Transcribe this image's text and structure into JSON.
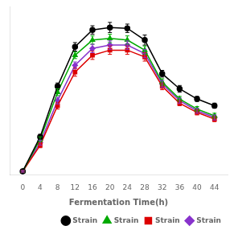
{
  "chart_data": {
    "type": "line",
    "xlabel": "Fermentation Time(h)",
    "x": [
      0,
      4,
      8,
      12,
      16,
      20,
      24,
      28,
      32,
      36,
      40,
      44
    ],
    "series": [
      {
        "name": "Strain",
        "color": "#000000",
        "marker": "circle",
        "values": [
          0.04,
          0.45,
          1.05,
          1.52,
          1.72,
          1.75,
          1.74,
          1.6,
          1.2,
          1.02,
          0.9,
          0.82
        ],
        "yerr": [
          0.01,
          0.03,
          0.04,
          0.05,
          0.05,
          0.06,
          0.05,
          0.06,
          0.04,
          0.04,
          0.03,
          0.03
        ]
      },
      {
        "name": "Strain",
        "color": "#00aa00",
        "marker": "triangle",
        "values": [
          0.04,
          0.42,
          0.98,
          1.42,
          1.6,
          1.62,
          1.6,
          1.48,
          1.1,
          0.9,
          0.78,
          0.7
        ],
        "yerr": [
          0.01,
          0.03,
          0.04,
          0.04,
          0.05,
          0.05,
          0.05,
          0.05,
          0.04,
          0.03,
          0.03,
          0.03
        ]
      },
      {
        "name": "Strain",
        "color": "#dd0000",
        "marker": "square",
        "values": [
          0.04,
          0.35,
          0.82,
          1.22,
          1.42,
          1.48,
          1.48,
          1.4,
          1.05,
          0.85,
          0.74,
          0.66
        ],
        "yerr": [
          0.01,
          0.03,
          0.04,
          0.05,
          0.05,
          0.05,
          0.05,
          0.05,
          0.04,
          0.03,
          0.03,
          0.03
        ]
      },
      {
        "name": "Strain",
        "color": "#8833cc",
        "marker": "diamond",
        "values": [
          0.04,
          0.38,
          0.88,
          1.3,
          1.5,
          1.54,
          1.54,
          1.44,
          1.08,
          0.88,
          0.76,
          0.68
        ],
        "yerr": [
          0.01,
          0.03,
          0.04,
          0.04,
          0.05,
          0.05,
          0.05,
          0.05,
          0.04,
          0.03,
          0.03,
          0.03
        ]
      }
    ],
    "xlim": [
      -3,
      47
    ],
    "xticks": [
      0,
      4,
      8,
      12,
      16,
      20,
      24,
      28,
      32,
      36,
      40,
      44
    ],
    "ylim": [
      0,
      2.0
    ],
    "yticks": [],
    "tick_labels": "x",
    "grid": false,
    "legend": "lower right"
  }
}
